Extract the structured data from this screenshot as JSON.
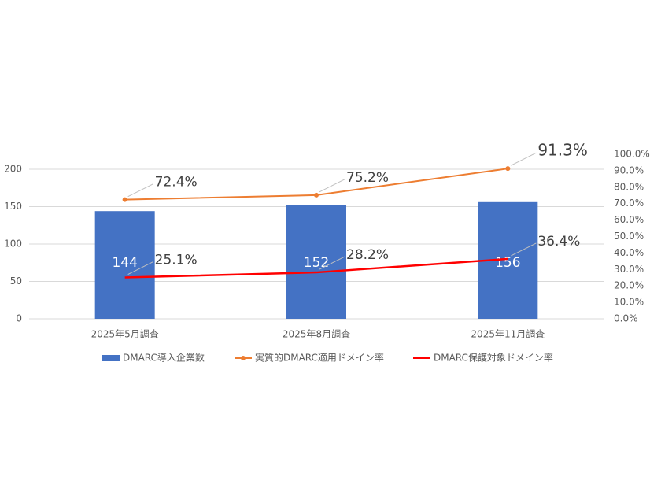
{
  "chart_data": {
    "type": "combo",
    "categories": [
      "2025年5月調査",
      "2025年8月調査",
      "2025年11月調査"
    ],
    "series": [
      {
        "name": "DMARC導入企業数",
        "type": "bar",
        "color": "#4472c4",
        "values": [
          144,
          152,
          156
        ]
      },
      {
        "name": "実質的DMARC適用ドメイン率",
        "type": "line",
        "axis": "y2",
        "color": "#ed7d31",
        "marker": true,
        "values": [
          72.4,
          75.2,
          91.3
        ],
        "value_labels": [
          "72.4%",
          "75.2%",
          "91.3%"
        ]
      },
      {
        "name": "DMARC保護対象ドメイン率",
        "type": "line",
        "axis": "y2",
        "color": "#ff0000",
        "marker": false,
        "values": [
          25.1,
          28.2,
          36.4
        ],
        "value_labels": [
          "25.1%",
          "28.2%",
          "36.4%"
        ]
      }
    ],
    "ylim": [
      0,
      220
    ],
    "yticks": [
      0,
      50,
      100,
      150,
      200
    ],
    "y2lim": [
      0,
      100
    ],
    "y2ticks": [
      {
        "value": 0,
        "label": "0.0%"
      },
      {
        "value": 10,
        "label": "10.0%"
      },
      {
        "value": 20,
        "label": "20.0%"
      },
      {
        "value": 30,
        "label": "30.0%"
      },
      {
        "value": 40,
        "label": "40.0%"
      },
      {
        "value": 50,
        "label": "50.0%"
      },
      {
        "value": 60,
        "label": "60.0%"
      },
      {
        "value": 70,
        "label": "70.0%"
      },
      {
        "value": 80,
        "label": "80.0%"
      },
      {
        "value": 90,
        "label": "90.0%"
      },
      {
        "value": 100,
        "label": "100.0%"
      }
    ],
    "grid": true
  }
}
